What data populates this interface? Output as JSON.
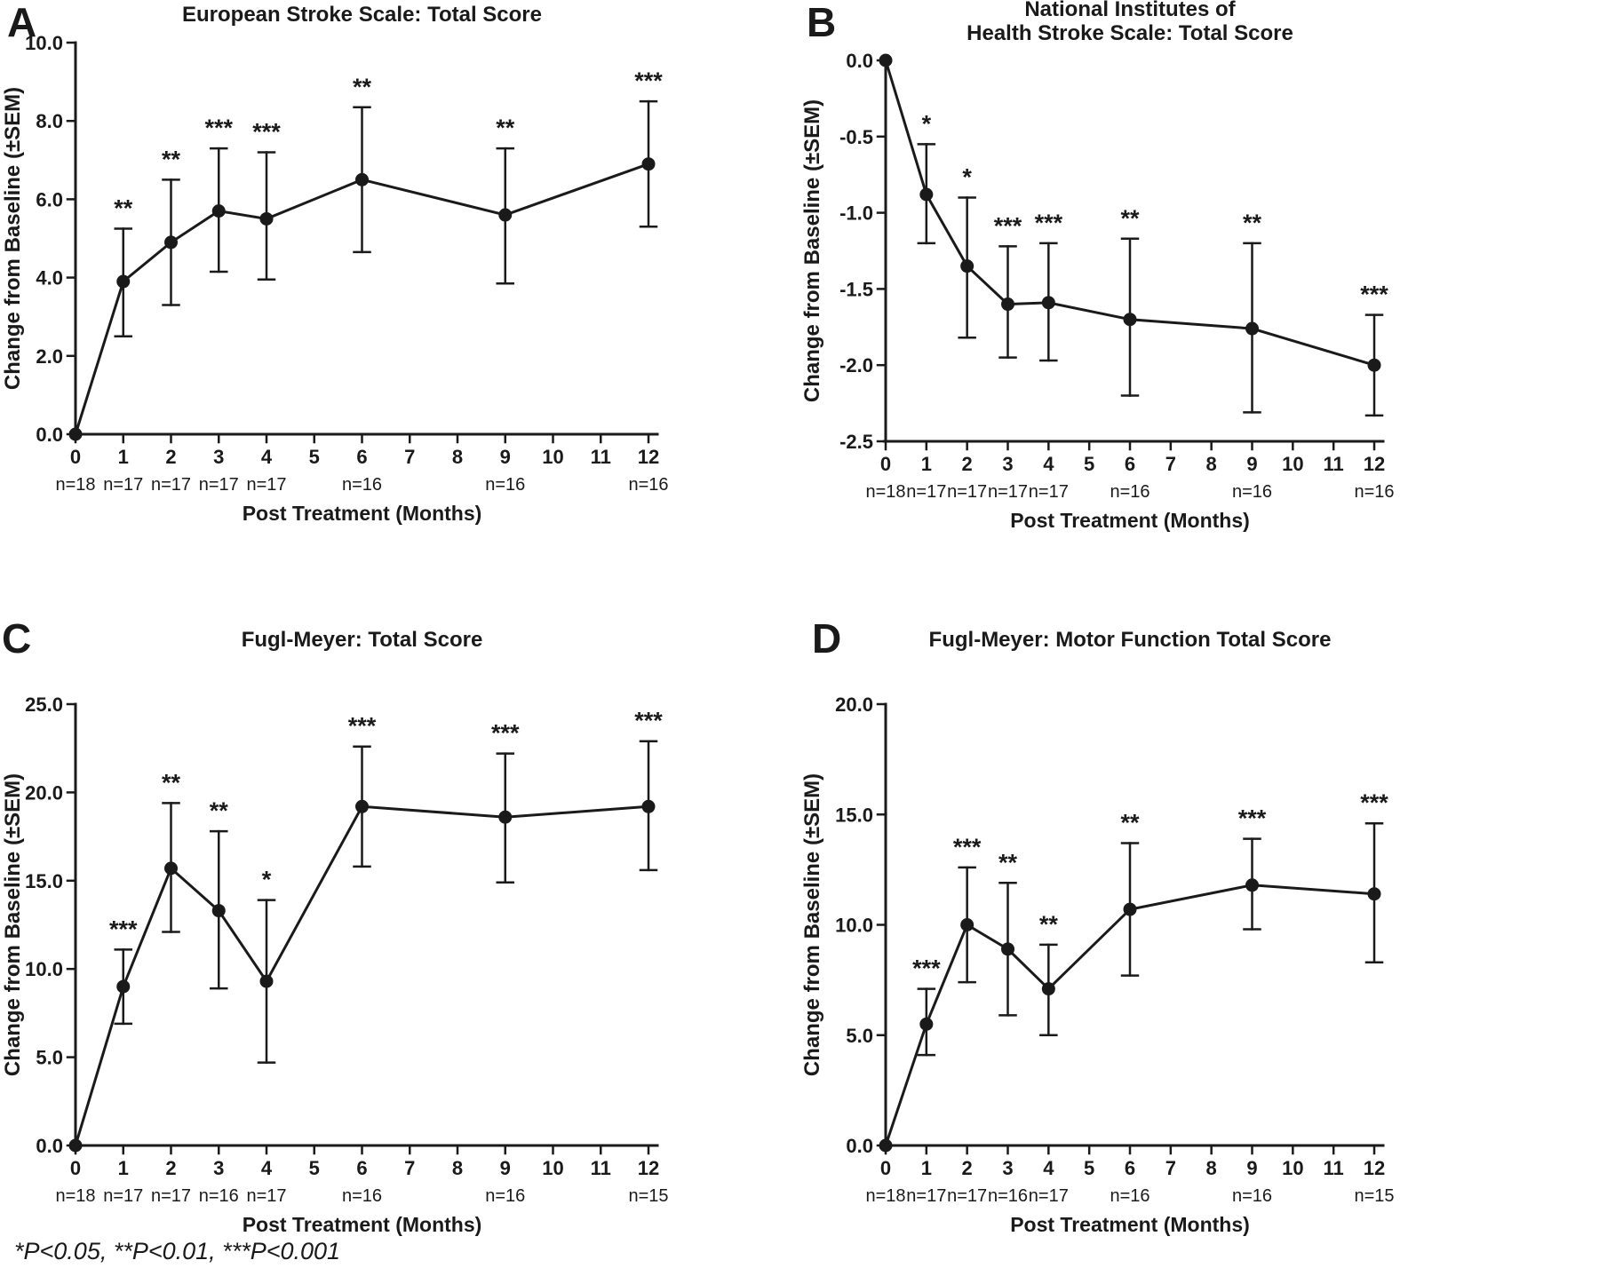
{
  "figure": {
    "footnote": "*P<0.05, **P<0.01, ***P<0.001",
    "line_color": "#1a1a1a",
    "background": "#ffffff"
  },
  "chart_data": [
    {
      "type": "line",
      "panel_label": "A",
      "title_lines": [
        "European Stroke Scale: Total Score"
      ],
      "ylabel": "Change from Baseline (±SEM)",
      "xlabel": "Post Treatment (Months)",
      "ylim": [
        0,
        10
      ],
      "ytick_values": [
        0,
        2,
        4,
        6,
        8,
        10
      ],
      "ytick_labels": [
        "0.0",
        "2.0",
        "4.0",
        "6.0",
        "8.0",
        "10.0"
      ],
      "xlim": [
        0,
        12
      ],
      "xtick_values": [
        0,
        1,
        2,
        3,
        4,
        5,
        6,
        7,
        8,
        9,
        10,
        11,
        12
      ],
      "x": [
        0,
        1,
        2,
        3,
        4,
        6,
        9,
        12
      ],
      "y": [
        0,
        3.9,
        4.9,
        5.7,
        5.5,
        6.5,
        5.6,
        6.9
      ],
      "err_low": [
        0,
        2.5,
        3.3,
        4.15,
        3.95,
        4.65,
        3.85,
        5.3
      ],
      "err_high": [
        0,
        5.25,
        6.5,
        7.3,
        7.2,
        8.35,
        7.3,
        8.5
      ],
      "sig": [
        "",
        "**",
        "**",
        "***",
        "***",
        "**",
        "**",
        "***"
      ],
      "n_labels": [
        "n=18",
        "n=17",
        "n=17",
        "n=17",
        "n=17",
        "n=16",
        "n=16",
        "n=16"
      ],
      "grid": false,
      "legend": "none"
    },
    {
      "type": "line",
      "panel_label": "B",
      "title_lines": [
        "National Institutes of",
        "Health Stroke Scale: Total Score"
      ],
      "ylabel": "Change from Baseline (±SEM)",
      "xlabel": "Post Treatment (Months)",
      "ylim": [
        -2.5,
        0
      ],
      "ytick_values": [
        0,
        -0.5,
        -1,
        -1.5,
        -2,
        -2.5
      ],
      "ytick_labels": [
        "0.0",
        "-0.5",
        "-1.0",
        "-1.5",
        "-2.0",
        "-2.5"
      ],
      "xlim": [
        0,
        12
      ],
      "xtick_values": [
        0,
        1,
        2,
        3,
        4,
        5,
        6,
        7,
        8,
        9,
        10,
        11,
        12
      ],
      "x": [
        0,
        1,
        2,
        3,
        4,
        6,
        9,
        12
      ],
      "y": [
        0,
        -0.88,
        -1.35,
        -1.6,
        -1.59,
        -1.7,
        -1.76,
        -2.0
      ],
      "err_low": [
        0,
        -1.2,
        -1.82,
        -1.95,
        -1.97,
        -2.2,
        -2.31,
        -2.33
      ],
      "err_high": [
        0,
        -0.55,
        -0.9,
        -1.22,
        -1.2,
        -1.17,
        -1.2,
        -1.67
      ],
      "sig": [
        "",
        "*",
        "*",
        "***",
        "***",
        "**",
        "**",
        "***"
      ],
      "n_labels": [
        "n=18",
        "n=17",
        "n=17",
        "n=17",
        "n=17",
        "n=16",
        "n=16",
        "n=16"
      ],
      "grid": false,
      "legend": "none"
    },
    {
      "type": "line",
      "panel_label": "C",
      "title_lines": [
        "Fugl-Meyer: Total Score"
      ],
      "ylabel": "Change from Baseline (±SEM)",
      "xlabel": "Post Treatment (Months)",
      "ylim": [
        0,
        25
      ],
      "ytick_values": [
        0,
        5,
        10,
        15,
        20,
        25
      ],
      "ytick_labels": [
        "0.0",
        "5.0",
        "10.0",
        "15.0",
        "20.0",
        "25.0"
      ],
      "xlim": [
        0,
        12
      ],
      "xtick_values": [
        0,
        1,
        2,
        3,
        4,
        5,
        6,
        7,
        8,
        9,
        10,
        11,
        12
      ],
      "x": [
        0,
        1,
        2,
        3,
        4,
        6,
        9,
        12
      ],
      "y": [
        0,
        9.0,
        15.7,
        13.3,
        9.3,
        19.2,
        18.6,
        19.2
      ],
      "err_low": [
        0,
        6.9,
        12.1,
        8.9,
        4.7,
        15.8,
        14.9,
        15.6
      ],
      "err_high": [
        0,
        11.1,
        19.4,
        17.8,
        13.9,
        22.6,
        22.2,
        22.9
      ],
      "sig": [
        "",
        "***",
        "**",
        "**",
        "*",
        "***",
        "***",
        "***"
      ],
      "n_labels": [
        "n=18",
        "n=17",
        "n=17",
        "n=16",
        "n=17",
        "n=16",
        "n=16",
        "n=15"
      ],
      "grid": false,
      "legend": "none"
    },
    {
      "type": "line",
      "panel_label": "D",
      "title_lines": [
        "Fugl-Meyer: Motor Function Total Score"
      ],
      "ylabel": "Change from Baseline (±SEM)",
      "xlabel": "Post Treatment (Months)",
      "ylim": [
        0,
        20
      ],
      "ytick_values": [
        0,
        5,
        10,
        15,
        20
      ],
      "ytick_labels": [
        "0.0",
        "5.0",
        "10.0",
        "15.0",
        "20.0"
      ],
      "xlim": [
        0,
        12
      ],
      "xtick_values": [
        0,
        1,
        2,
        3,
        4,
        5,
        6,
        7,
        8,
        9,
        10,
        11,
        12
      ],
      "x": [
        0,
        1,
        2,
        3,
        4,
        6,
        9,
        12
      ],
      "y": [
        0,
        5.5,
        10.0,
        8.9,
        7.1,
        10.7,
        11.8,
        11.4
      ],
      "err_low": [
        0,
        4.1,
        7.4,
        5.9,
        5.0,
        7.7,
        9.8,
        8.3
      ],
      "err_high": [
        0,
        7.1,
        12.6,
        11.9,
        9.1,
        13.7,
        13.9,
        14.6
      ],
      "sig": [
        "",
        "***",
        "***",
        "**",
        "**",
        "**",
        "***",
        "***"
      ],
      "n_labels": [
        "n=18",
        "n=17",
        "n=17",
        "n=16",
        "n=17",
        "n=16",
        "n=16",
        "n=15"
      ],
      "grid": false,
      "legend": "none"
    }
  ]
}
